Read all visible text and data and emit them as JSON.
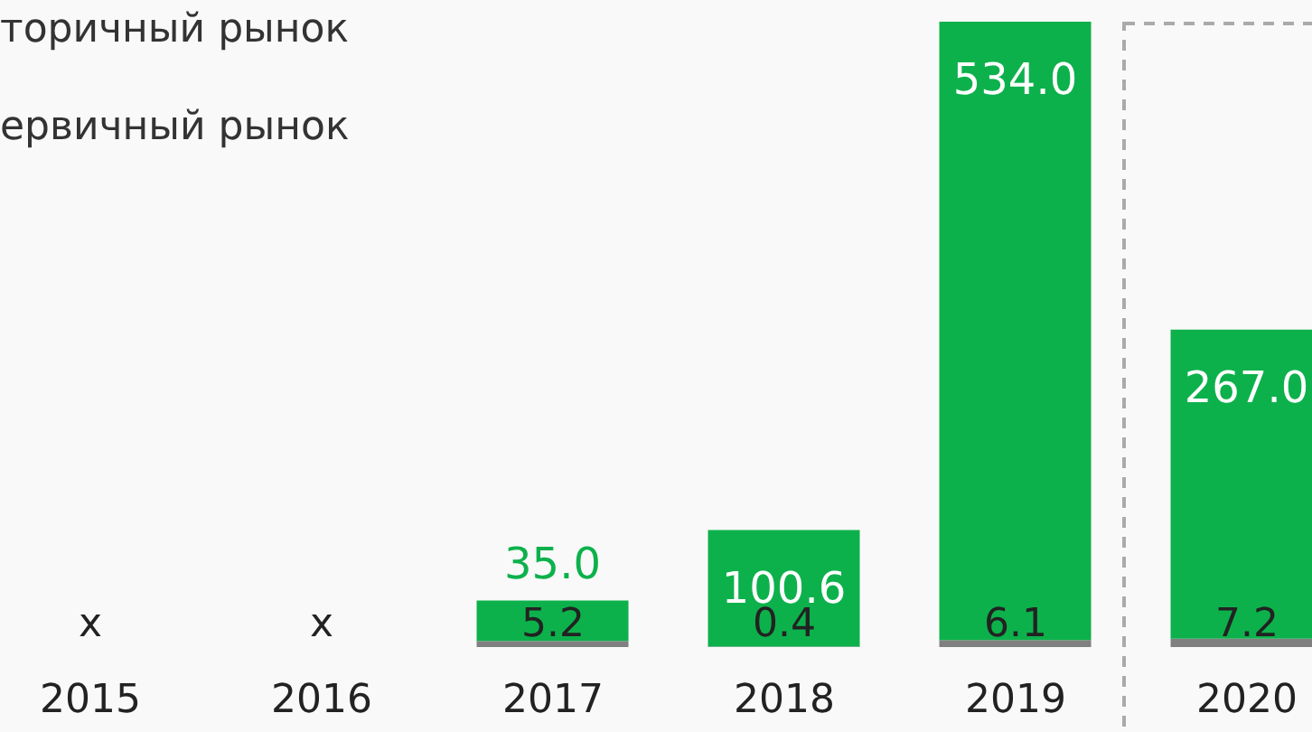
{
  "chart_data": {
    "type": "bar",
    "stacked": true,
    "categories": [
      "2015",
      "2016",
      "2017",
      "2018",
      "2019",
      "2020"
    ],
    "series": [
      {
        "color": "#808080",
        "values": [
          null,
          null,
          5.2,
          0.4,
          6.1,
          7.2
        ],
        "value_labels": [
          "x",
          "x",
          "5.2",
          "0.4",
          "6.1",
          "7.2"
        ]
      },
      {
        "color": "#0db14b",
        "values": [
          null,
          null,
          35.0,
          100.6,
          534.0,
          267.0
        ],
        "value_labels": [
          null,
          null,
          "35.0",
          "100.6",
          "534.0",
          "267.0"
        ]
      }
    ],
    "annotations": [
      "торичный рынок",
      "ервичный рынок"
    ]
  }
}
